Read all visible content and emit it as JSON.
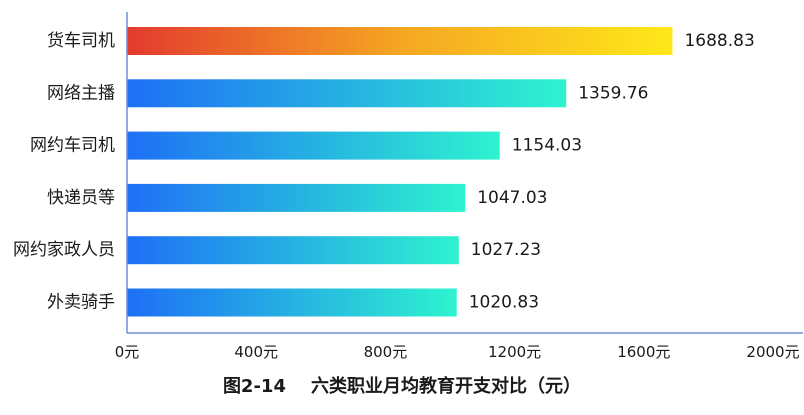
{
  "chart_data": {
    "type": "bar",
    "orientation": "horizontal",
    "title": "图2-14    六类职业月均教育开支对比（元）",
    "categories": [
      "货车司机",
      "网络主播",
      "网约车司机",
      "快递员等",
      "网约家政人员",
      "外卖骑手"
    ],
    "values": [
      1688.83,
      1359.76,
      1154.03,
      1047.03,
      1027.23,
      1020.83
    ],
    "value_labels": [
      "1688.83",
      "1359.76",
      "1154.03",
      "1047.03",
      "1027.23",
      "1020.83"
    ],
    "xlim": [
      0,
      2000
    ],
    "x_ticks": [
      0,
      400,
      800,
      1200,
      1600,
      2000
    ],
    "x_tick_labels": [
      "0元",
      "400元",
      "800元",
      "1200元",
      "1600元",
      "2000元"
    ],
    "grid": false,
    "colors": {
      "highlight_gradient": [
        "#e23b2e",
        "#f5a623",
        "#ffe81a"
      ],
      "bar_gradient": [
        "#1e6ff5",
        "#2ef3cf"
      ],
      "axis": "#6b8fd6"
    }
  }
}
